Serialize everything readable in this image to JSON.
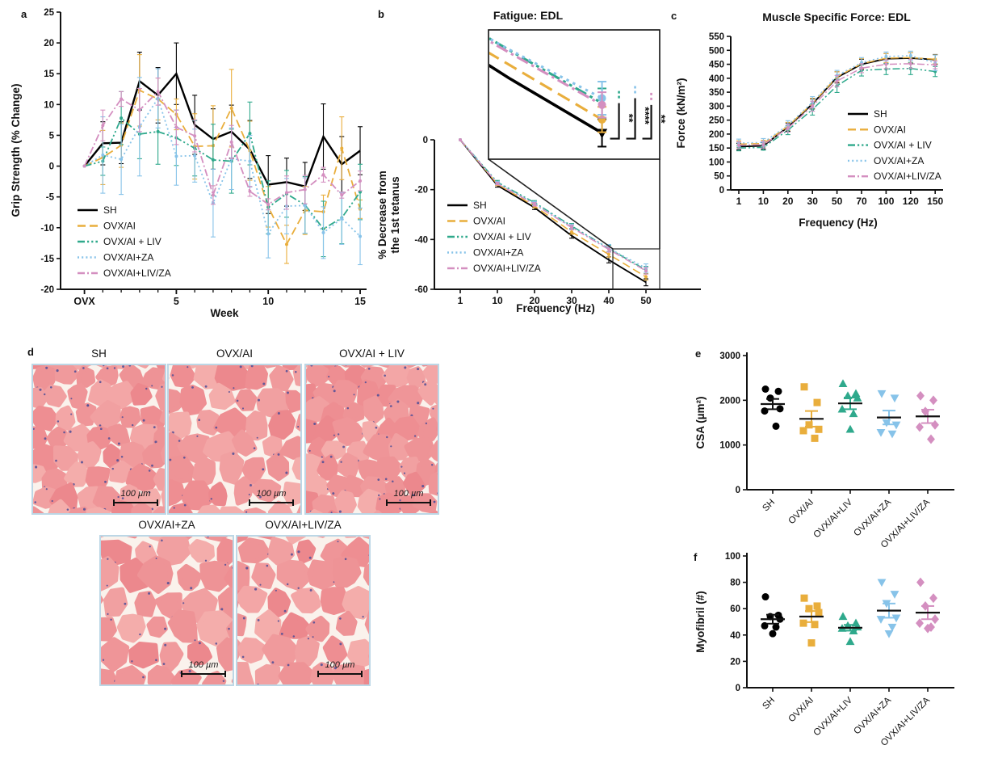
{
  "panel_letters": {
    "a": "a",
    "b": "b",
    "c": "c",
    "d": "d",
    "e": "e",
    "f": "f"
  },
  "groups": [
    {
      "name": "SH",
      "color": "#000000",
      "dash": "solid",
      "marker": "circle"
    },
    {
      "name": "OVX/AI",
      "color": "#E9AE3C",
      "dash": "dash",
      "marker": "square"
    },
    {
      "name": "OVX/AI + LIV",
      "color": "#2FA98C",
      "dash": "dashdotdot",
      "marker": "triangle-up"
    },
    {
      "name": "OVX/AI+ZA",
      "color": "#87C3E9",
      "dash": "dot",
      "marker": "triangle-down"
    },
    {
      "name": "OVX/AI+LIV/ZA",
      "color": "#D48FC0",
      "dash": "dashdot",
      "marker": "diamond"
    }
  ],
  "chart_data": [
    {
      "id": "a",
      "type": "line",
      "title": "",
      "xlabel": "Week",
      "ylabel": "Grip Strength (% Change)",
      "x": [
        0,
        1,
        2,
        3,
        4,
        5,
        6,
        7,
        8,
        9,
        10,
        11,
        12,
        13,
        14,
        15
      ],
      "xticks": [
        {
          "v": 0,
          "t": "OVX"
        },
        {
          "v": 5,
          "t": "5"
        },
        {
          "v": 10,
          "t": "10"
        },
        {
          "v": 15,
          "t": "15"
        }
      ],
      "ylim": [
        -20,
        25
      ],
      "yticks": [
        25,
        20,
        15,
        10,
        5,
        0,
        -5,
        -10,
        -15,
        -20
      ],
      "legend": [
        "SH",
        "OVX/AI",
        "OVX/AI + LIV",
        "OVX/AI+ZA",
        "OVX/AI+LIV/ZA"
      ],
      "series": [
        {
          "name": "SH",
          "values": [
            0,
            3.7,
            3.8,
            13.8,
            11.5,
            15,
            6.7,
            4.4,
            5.6,
            2.7,
            -3,
            -2.6,
            -3.3,
            4.8,
            0.3,
            2.5
          ],
          "err": [
            0,
            3.5,
            3.4,
            4.7,
            4.5,
            5,
            4.8,
            4.9,
            4.3,
            4.7,
            4.7,
            3.9,
            3.9,
            5.3,
            4.5,
            3.9
          ]
        },
        {
          "name": "OVX/AI",
          "values": [
            0,
            1.4,
            3.4,
            12.3,
            10.9,
            8.4,
            3.2,
            3.3,
            9.4,
            2.5,
            -6.6,
            -12.7,
            -7.2,
            -7.4,
            2.9,
            -7
          ],
          "err": [
            0,
            4.4,
            3.6,
            5.8,
            3.4,
            2.5,
            5.3,
            6.5,
            6.3,
            4.8,
            3.3,
            3.1,
            3.9,
            2.7,
            5.1,
            1.5
          ]
        },
        {
          "name": "OVX/AI + LIV",
          "values": [
            0,
            0.8,
            7.8,
            5.2,
            5.6,
            4.6,
            2.9,
            1,
            0.8,
            5.3,
            -6.7,
            -4.5,
            -6.3,
            -10.2,
            -8.4,
            -4.2
          ],
          "err": [
            0,
            2.3,
            4.3,
            4,
            5.3,
            4.5,
            4.5,
            5.8,
            5.2,
            5.1,
            4.3,
            3.8,
            4.6,
            4.5,
            4.2,
            4.5
          ]
        },
        {
          "name": "OVX/AI+ZA",
          "values": [
            0,
            1.8,
            1.1,
            6.4,
            11,
            1.6,
            1.7,
            -6,
            1.2,
            0.8,
            -11,
            -6.5,
            -6.4,
            -10.8,
            -8.5,
            -11.4
          ],
          "err": [
            0,
            6.2,
            5.7,
            8,
            4.8,
            4.7,
            4.3,
            5.5,
            5,
            4.2,
            3.9,
            4.5,
            4.5,
            4.2,
            4.2,
            4.6
          ]
        },
        {
          "name": "OVX/AI+LIV/ZA",
          "values": [
            0,
            6.6,
            10.9,
            9.1,
            12.1,
            6.3,
            4.9,
            -4.7,
            3.9,
            -4.1,
            -6.2,
            -4.3,
            -3.8,
            -1.4,
            -4.7,
            -2.4
          ],
          "err": [
            0,
            2.5,
            1.2,
            3.5,
            2.2,
            2.8,
            2.6,
            1.5,
            2.7,
            0.8,
            0.9,
            2.7,
            2.3,
            1.2,
            0.5,
            1.6
          ]
        }
      ]
    },
    {
      "id": "b",
      "type": "line",
      "title": "Fatigue: EDL",
      "xlabel": "Frequency (Hz)",
      "ylabel": [
        "% Decrease from",
        "the 1st tetanus"
      ],
      "x": [
        "1",
        "10",
        "20",
        "30",
        "40",
        "50"
      ],
      "categorical": true,
      "ylim": [
        -60,
        0
      ],
      "yticks": [
        0,
        -20,
        -40,
        -60
      ],
      "legend": [
        "SH",
        "OVX/AI",
        "OVX/AI + LIV",
        "OVX/AI+ZA",
        "OVX/AI+LIV/ZA"
      ],
      "series": [
        {
          "name": "SH",
          "values": [
            0,
            -18.3,
            -27.2,
            -38.5,
            -48.2,
            -57.2
          ],
          "err": [
            0,
            0.7,
            0.8,
            1,
            1.2,
            1.4
          ]
        },
        {
          "name": "OVX/AI",
          "values": [
            0,
            -17.8,
            -26.6,
            -37,
            -46,
            -55
          ],
          "err": [
            0,
            0.6,
            0.7,
            0.9,
            1.1,
            1.3
          ]
        },
        {
          "name": "OVX/AI + LIV",
          "values": [
            0,
            -17,
            -25.2,
            -34.6,
            -43.6,
            -52.3
          ],
          "err": [
            0,
            0.7,
            0.8,
            1,
            1.3,
            1.5
          ]
        },
        {
          "name": "OVX/AI+ZA",
          "values": [
            0,
            -17.3,
            -25.6,
            -35,
            -43.5,
            -51.5
          ],
          "err": [
            0,
            0.6,
            0.8,
            1,
            1.5,
            1.7
          ]
        },
        {
          "name": "OVX/AI+LIV/ZA",
          "values": [
            0,
            -17.6,
            -25.9,
            -35.2,
            -44,
            -52.6
          ],
          "err": [
            0,
            0.5,
            0.7,
            0.9,
            1.1,
            1.3
          ]
        }
      ],
      "inset": {
        "x_index_range": [
          3.78,
          5.62
        ],
        "y_range": [
          -61.5,
          -40.3
        ],
        "sig": [
          {
            "group": 2,
            "label": "**"
          },
          {
            "group": 3,
            "label": "****"
          },
          {
            "group": 4,
            "label": "**"
          }
        ]
      }
    },
    {
      "id": "c",
      "type": "line",
      "title": "Muscle Specific Force: EDL",
      "xlabel": "Frequency (Hz)",
      "ylabel": "Force (kN/m²)",
      "x": [
        "1",
        "10",
        "20",
        "30",
        "50",
        "70",
        "100",
        "120",
        "150"
      ],
      "categorical": true,
      "ylim": [
        0,
        550
      ],
      "yticks": [
        550,
        500,
        450,
        400,
        350,
        300,
        250,
        200,
        150,
        100,
        50,
        0
      ],
      "legend": [
        "SH",
        "OVX/AI",
        "OVX/AI + LIV",
        "OVX/AI+ZA",
        "OVX/AI+LIV/ZA"
      ],
      "series": [
        {
          "name": "SH",
          "values": [
            155,
            158,
            225,
            308,
            403,
            450,
            470,
            472,
            467
          ],
          "err": [
            12,
            12,
            15,
            18,
            20,
            18,
            18,
            20,
            18
          ]
        },
        {
          "name": "OVX/AI",
          "values": [
            164,
            166,
            228,
            310,
            405,
            452,
            472,
            474,
            468
          ],
          "err": [
            12,
            12,
            14,
            18,
            18,
            18,
            16,
            18,
            16
          ]
        },
        {
          "name": "OVX/AI + LIV",
          "values": [
            150,
            152,
            214,
            288,
            373,
            428,
            433,
            435,
            424
          ],
          "err": [
            10,
            10,
            16,
            20,
            24,
            20,
            20,
            22,
            18
          ]
        },
        {
          "name": "OVX/AI+ZA",
          "values": [
            168,
            170,
            232,
            314,
            410,
            456,
            478,
            481,
            455
          ],
          "err": [
            14,
            14,
            16,
            20,
            18,
            18,
            16,
            16,
            28
          ]
        },
        {
          "name": "OVX/AI+LIV/ZA",
          "values": [
            160,
            162,
            221,
            300,
            390,
            436,
            450,
            452,
            448
          ],
          "err": [
            12,
            12,
            14,
            18,
            20,
            16,
            16,
            16,
            14
          ]
        }
      ]
    },
    {
      "id": "e",
      "type": "scatter",
      "ylabel": "CSA (µm²)",
      "ylim": [
        0,
        3000
      ],
      "yticks": [
        3000,
        2000,
        1000,
        0
      ],
      "categories": [
        "SH",
        "OVX/AI",
        "OVX/AI+LIV",
        "OVX/AI+ZA",
        "OVX/AI+LIV/ZA"
      ],
      "points": [
        {
          "values": [
            2250,
            2200,
            2050,
            1810,
            1760,
            1420
          ],
          "mean": 1915,
          "sem": 115
        },
        {
          "values": [
            2300,
            1950,
            1450,
            1350,
            1320,
            1150
          ],
          "mean": 1585,
          "sem": 175
        },
        {
          "values": [
            2370,
            2150,
            2100,
            2050,
            1800,
            1700,
            1350
          ],
          "mean": 1930,
          "sem": 130
        },
        {
          "values": [
            2150,
            2050,
            1500,
            1450,
            1280,
            1250
          ],
          "mean": 1615,
          "sem": 155
        },
        {
          "values": [
            2100,
            2000,
            1750,
            1450,
            1400,
            1130
          ],
          "mean": 1640,
          "sem": 150
        }
      ]
    },
    {
      "id": "f",
      "type": "scatter",
      "ylabel": "Myofibril (#)",
      "ylim": [
        0,
        100
      ],
      "yticks": [
        100,
        80,
        60,
        40,
        20,
        0
      ],
      "categories": [
        "SH",
        "OVX/AI",
        "OVX/AI+LIV",
        "OVX/AI+ZA",
        "OVX/AI+LIV/ZA"
      ],
      "points": [
        {
          "values": [
            69,
            55,
            54,
            52,
            47,
            46,
            41
          ],
          "mean": 52,
          "sem": 3.4
        },
        {
          "values": [
            68,
            62,
            60,
            57,
            49,
            48,
            34
          ],
          "mean": 54,
          "sem": 4.2
        },
        {
          "values": [
            54,
            49,
            47,
            46,
            45,
            43,
            35
          ],
          "mean": 45.5,
          "sem": 2.2
        },
        {
          "values": [
            80,
            71,
            64,
            53,
            52,
            46,
            41
          ],
          "mean": 58.5,
          "sem": 5.4
        },
        {
          "values": [
            80,
            68,
            62,
            52,
            49,
            46,
            45
          ],
          "mean": 57,
          "sem": 5
        }
      ]
    }
  ],
  "histology": {
    "scalebar": "100 µm",
    "images": [
      {
        "label": "SH"
      },
      {
        "label": "OVX/AI"
      },
      {
        "label": "OVX/AI + LIV"
      },
      {
        "label": "OVX/AI+ZA"
      },
      {
        "label": "OVX/AI+LIV/ZA"
      }
    ]
  }
}
